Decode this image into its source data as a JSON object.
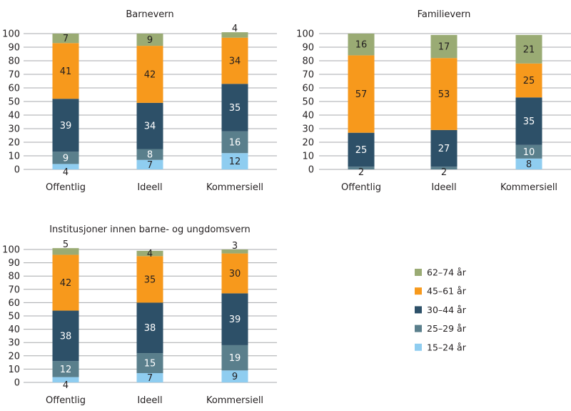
{
  "chart_data": [
    {
      "type": "bar",
      "stacked": true,
      "title": "Barnevern",
      "xlabel": "",
      "ylabel": "",
      "ylim": [
        0,
        100
      ],
      "yticks": [
        0,
        10,
        20,
        30,
        40,
        50,
        60,
        70,
        80,
        90,
        100
      ],
      "grid": true,
      "categories": [
        "Offentlig",
        "Ideell",
        "Kommersiell"
      ],
      "series": [
        {
          "name": "15–24 år",
          "values": [
            4,
            7,
            12
          ]
        },
        {
          "name": "25–29 år",
          "values": [
            9,
            8,
            16
          ]
        },
        {
          "name": "30–44 år",
          "values": [
            39,
            34,
            35
          ]
        },
        {
          "name": "45–61 år",
          "values": [
            41,
            42,
            34
          ]
        },
        {
          "name": "62–74 år",
          "values": [
            7,
            9,
            4
          ]
        }
      ]
    },
    {
      "type": "bar",
      "stacked": true,
      "title": "Familievern",
      "xlabel": "",
      "ylabel": "",
      "ylim": [
        0,
        100
      ],
      "yticks": [
        0,
        10,
        20,
        30,
        40,
        50,
        60,
        70,
        80,
        90,
        100
      ],
      "grid": true,
      "categories": [
        "Offentlig",
        "Ideell",
        "Kommersiell"
      ],
      "series": [
        {
          "name": "15–24 år",
          "values": [
            null,
            null,
            8
          ]
        },
        {
          "name": "25–29 år",
          "values": [
            2,
            2,
            10
          ]
        },
        {
          "name": "30–44 år",
          "values": [
            25,
            27,
            35
          ]
        },
        {
          "name": "45–61 år",
          "values": [
            57,
            53,
            25
          ]
        },
        {
          "name": "62–74 år",
          "values": [
            16,
            17,
            21
          ]
        }
      ]
    },
    {
      "type": "bar",
      "stacked": true,
      "title": "Institusjoner innen barne- og ungdomsvern",
      "xlabel": "",
      "ylabel": "",
      "ylim": [
        0,
        100
      ],
      "yticks": [
        0,
        10,
        20,
        30,
        40,
        50,
        60,
        70,
        80,
        90,
        100
      ],
      "grid": true,
      "categories": [
        "Offentlig",
        "Ideell",
        "Kommersiell"
      ],
      "series": [
        {
          "name": "15–24 år",
          "values": [
            4,
            7,
            9
          ]
        },
        {
          "name": "25–29 år",
          "values": [
            12,
            15,
            19
          ]
        },
        {
          "name": "30–44 år",
          "values": [
            38,
            38,
            39
          ]
        },
        {
          "name": "45–61 år",
          "values": [
            42,
            35,
            30
          ]
        },
        {
          "name": "62–74 år",
          "values": [
            5,
            4,
            3
          ]
        }
      ]
    }
  ],
  "legend": {
    "placement": "right",
    "items": [
      {
        "label": "62–74 år",
        "color": "#9aab74"
      },
      {
        "label": "45–61 år",
        "color": "#f7991c"
      },
      {
        "label": "30–44 år",
        "color": "#2d5068"
      },
      {
        "label": "25–29 år",
        "color": "#5a7f8c"
      },
      {
        "label": "15–24 år",
        "color": "#8fcdf0"
      }
    ]
  },
  "series_colors": {
    "15–24 år": "#8fcdf0",
    "25–29 år": "#5a7f8c",
    "30–44 år": "#2d5068",
    "45–61 år": "#f7991c",
    "62–74 år": "#9aab74"
  },
  "label_colors": {
    "15–24 år": "#231f20",
    "25–29 år": "#ffffff",
    "30–44 år": "#ffffff",
    "45–61 år": "#231f20",
    "62–74 år": "#231f20"
  }
}
